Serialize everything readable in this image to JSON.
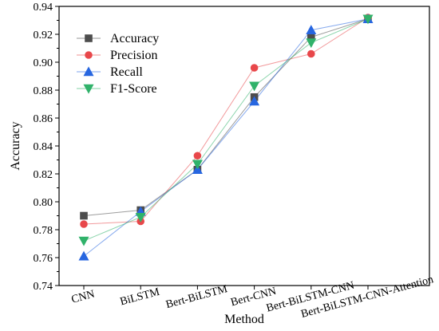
{
  "chart_data": {
    "type": "line",
    "xlabel": "Method",
    "ylabel": "Accuracy",
    "ylim": [
      0.74,
      0.94
    ],
    "yticks": [
      "0.74",
      "0.76",
      "0.78",
      "0.80",
      "0.82",
      "0.84",
      "0.86",
      "0.88",
      "0.90",
      "0.92",
      "0.94"
    ],
    "categories": [
      "CNN",
      "BiLSTM",
      "Bert-BiLSTM",
      "Bert-CNN",
      "Bert-BiLSTM-CNN",
      "Bert-BiLSTM-CNN-Attention"
    ],
    "legend_position": "top-left",
    "grid": false,
    "series": [
      {
        "name": "Accuracy",
        "marker": "square",
        "color": "#4d4d4d",
        "values": [
          0.79,
          0.794,
          0.823,
          0.875,
          0.918,
          0.931
        ]
      },
      {
        "name": "Precision",
        "marker": "circle",
        "color": "#e8474a",
        "values": [
          0.784,
          0.786,
          0.833,
          0.896,
          0.906,
          0.932
        ]
      },
      {
        "name": "Recall",
        "marker": "triangle-up",
        "color": "#2766e0",
        "values": [
          0.761,
          0.793,
          0.823,
          0.872,
          0.923,
          0.931
        ]
      },
      {
        "name": "F1-Score",
        "marker": "triangle-down",
        "color": "#30b26a",
        "values": [
          0.772,
          0.789,
          0.827,
          0.883,
          0.914,
          0.931
        ]
      }
    ]
  }
}
